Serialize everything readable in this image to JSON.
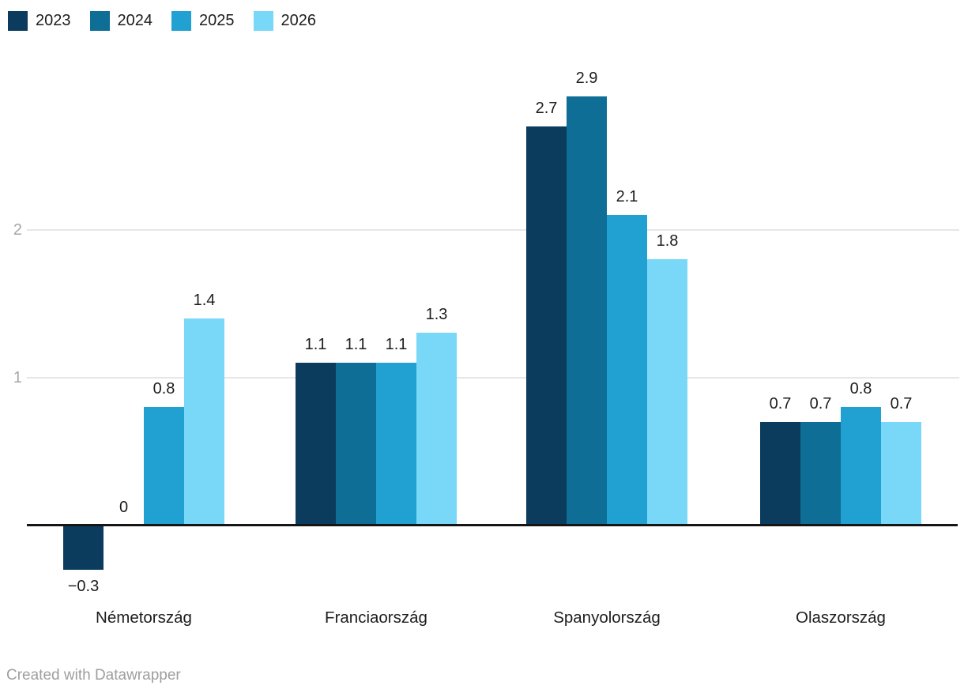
{
  "chart_data": {
    "type": "bar",
    "title": "",
    "categories": [
      "Németország",
      "Franciaország",
      "Spanyolország",
      "Olaszország"
    ],
    "series": [
      {
        "name": "2023",
        "color": "#0b3c5d",
        "values": [
          -0.3,
          1.1,
          2.7,
          0.7
        ]
      },
      {
        "name": "2024",
        "color": "#0e6e96",
        "values": [
          0,
          1.1,
          2.9,
          0.7
        ]
      },
      {
        "name": "2025",
        "color": "#21a1d2",
        "values": [
          0.8,
          1.1,
          2.1,
          0.8
        ]
      },
      {
        "name": "2026",
        "color": "#79d7f7",
        "values": [
          1.4,
          1.3,
          1.8,
          0.7
        ]
      }
    ],
    "value_labels": {
      "shown": true,
      "germany": [
        "−0.3",
        "0",
        "0.8",
        "1.4"
      ],
      "france": [
        "1.1",
        "1.1",
        "1.1",
        "1.3"
      ],
      "spain": [
        "2.7",
        "2.9",
        "2.1",
        "1.8"
      ],
      "italy": [
        "0.7",
        "0.7",
        "0.8",
        "0.7"
      ]
    },
    "y_axis": {
      "ticks": [
        1,
        2
      ],
      "ylim": [
        -0.5,
        3.1
      ],
      "gridline_color": "#e6e6e6",
      "baseline_color": "#151515",
      "tick_label_color": "#a6a6a6"
    },
    "grid": "horizontal",
    "legend_position": "top-left",
    "xlabel": "",
    "ylabel": ""
  },
  "footer": {
    "attribution": "Created with Datawrapper"
  }
}
